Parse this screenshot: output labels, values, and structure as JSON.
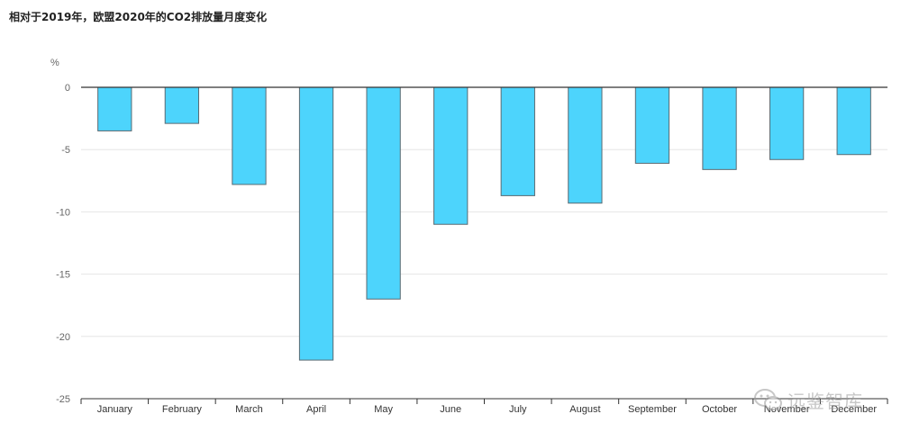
{
  "chart_data": {
    "type": "bar",
    "title": "相对于2019年，欧盟2020年的CO2排放量月度变化",
    "ylabel": "%",
    "ylim": [
      -25,
      0
    ],
    "yticks": [
      0,
      -5,
      -10,
      -15,
      -20,
      -25
    ],
    "grid": true,
    "categories": [
      "January",
      "February",
      "March",
      "April",
      "May",
      "June",
      "July",
      "August",
      "September",
      "October",
      "November",
      "December"
    ],
    "values": [
      -3.5,
      -2.9,
      -7.8,
      -21.9,
      -17.0,
      -11.0,
      -8.7,
      -9.3,
      -6.1,
      -6.6,
      -5.8,
      -5.4
    ],
    "colors": {
      "bar": "#4dd4fc",
      "bar_edge": "#5a6a72",
      "grid": "#e6e6e6",
      "zero_line": "#333333"
    }
  },
  "watermark": {
    "text": "远鉴智库",
    "icon": "wechat-icon"
  }
}
